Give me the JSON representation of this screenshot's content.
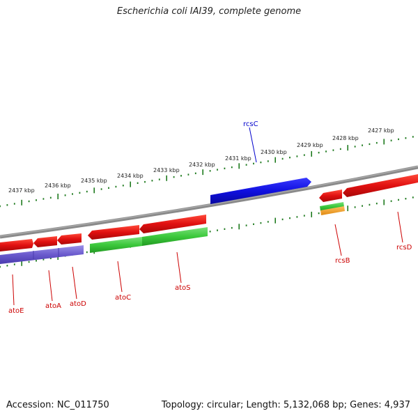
{
  "title": "Escherichia coli IAI39, complete genome",
  "footer": {
    "accession": "Accession: NC_011750",
    "summary": "Topology: circular; Length: 5,132,068 bp; Genes: 4,937"
  },
  "colors": {
    "backbone": "#8a8a8a",
    "tick": "#1e7a1e",
    "gene_red": "#e01010",
    "gene_green": "#3cc83c",
    "gene_blue": "#1010e0",
    "gene_purple": "#6a5acd",
    "gene_orange": "#f0a020",
    "label_red": "#cc0000",
    "label_blue": "#0000cc"
  },
  "ruler_labels": [
    "2437 kbp",
    "2436 kbp",
    "2435 kbp",
    "2434 kbp",
    "2433 kbp",
    "2432 kbp",
    "2431 kbp",
    "2430 kbp",
    "2429 kbp",
    "2428 kbp",
    "2427 kbp"
  ],
  "gene_labels": [
    {
      "name": "rcsC",
      "color": "blue"
    },
    {
      "name": "atoE",
      "color": "red"
    },
    {
      "name": "atoA",
      "color": "red"
    },
    {
      "name": "atoD",
      "color": "red"
    },
    {
      "name": "atoC",
      "color": "red"
    },
    {
      "name": "atoS",
      "color": "red"
    },
    {
      "name": "rcsB",
      "color": "red"
    },
    {
      "name": "rcsD",
      "color": "red"
    }
  ]
}
